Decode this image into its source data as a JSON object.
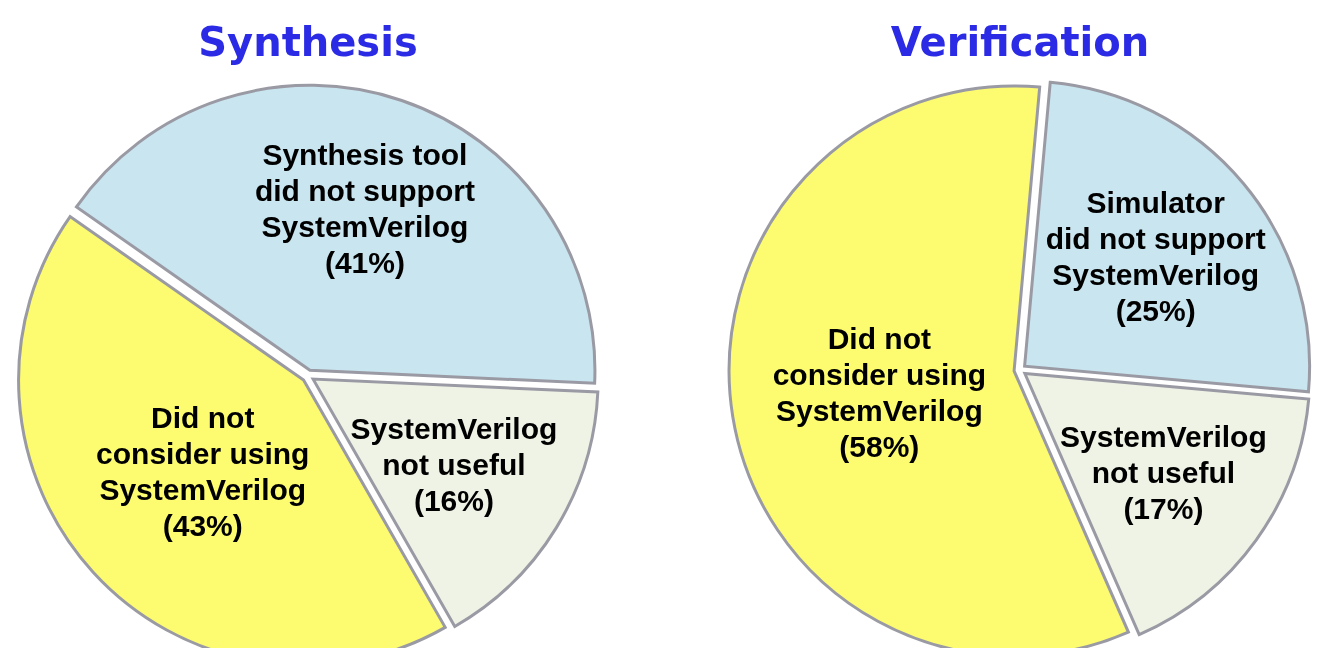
{
  "chart_data": [
    {
      "type": "pie",
      "title": "Synthesis",
      "categories": [
        "Synthesis tool\ndid not support\nSystemVerilog",
        "SystemVerilog\nnot useful",
        "Did not\nconsider using\nSystemVerilog"
      ],
      "values": [
        41,
        16,
        43
      ],
      "colors": [
        "#c9e5ef",
        "#eef3e6",
        "#fdfc70"
      ],
      "value_labels": [
        "(41%)",
        "(16%)",
        "(43%)"
      ]
    },
    {
      "type": "pie",
      "title": "Verification",
      "categories": [
        "Simulator\ndid not support\nSystemVerilog",
        "SystemVerilog\nnot useful",
        "Did not\nconsider using\nSystemVerilog"
      ],
      "values": [
        25,
        17,
        58
      ],
      "colors": [
        "#c9e5ef",
        "#eef3e6",
        "#fdfc70"
      ],
      "value_labels": [
        "(25%)",
        "(17%)",
        "(58%)"
      ]
    }
  ]
}
